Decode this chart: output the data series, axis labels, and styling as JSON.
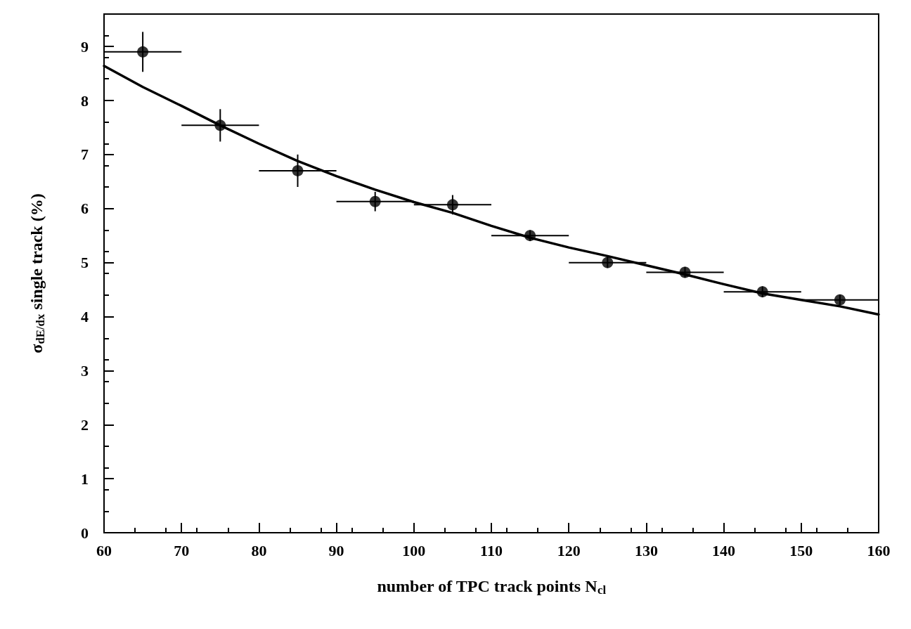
{
  "chart_data": {
    "type": "scatter",
    "xlabel": "number of TPC track points N$_{cl}$",
    "ylabel": "σ$_{dE/dx}$ single track (%)",
    "xlim": [
      60,
      160
    ],
    "xticks": [
      60,
      70,
      80,
      90,
      100,
      110,
      120,
      130,
      140,
      150,
      160
    ],
    "ylim": [
      0,
      9.6
    ],
    "yticks": [
      0,
      1,
      2,
      3,
      4,
      5,
      6,
      7,
      8,
      9
    ],
    "grid": false,
    "marker": "circle",
    "series": [
      {
        "color": "#000000",
        "x": [
          65,
          75,
          85,
          95,
          105,
          115,
          125,
          135,
          145,
          155
        ],
        "values": [
          8.9,
          7.54,
          6.7,
          6.13,
          6.07,
          5.5,
          5.0,
          4.82,
          4.46,
          4.31
        ],
        "errors": [
          0.37,
          0.3,
          0.3,
          0.18,
          0.18,
          0.1,
          0.1,
          0.1,
          0.1,
          0.1
        ],
        "xerrors": [
          5,
          5,
          5,
          5,
          5,
          5,
          5,
          5,
          5,
          5
        ]
      },
      {
        "type": "line",
        "color": "#000000",
        "marker": "none",
        "line_style": "solid",
        "x": [
          60,
          65,
          70,
          75,
          80,
          85,
          90,
          95,
          100,
          105,
          110,
          115,
          120,
          125,
          130,
          135,
          140,
          145,
          150,
          155,
          160
        ],
        "values": [
          8.64,
          8.25,
          7.9,
          7.54,
          7.2,
          6.88,
          6.6,
          6.35,
          6.12,
          5.92,
          5.68,
          5.46,
          5.28,
          5.12,
          4.95,
          4.78,
          4.6,
          4.43,
          4.31,
          4.19,
          4.04
        ]
      }
    ]
  }
}
